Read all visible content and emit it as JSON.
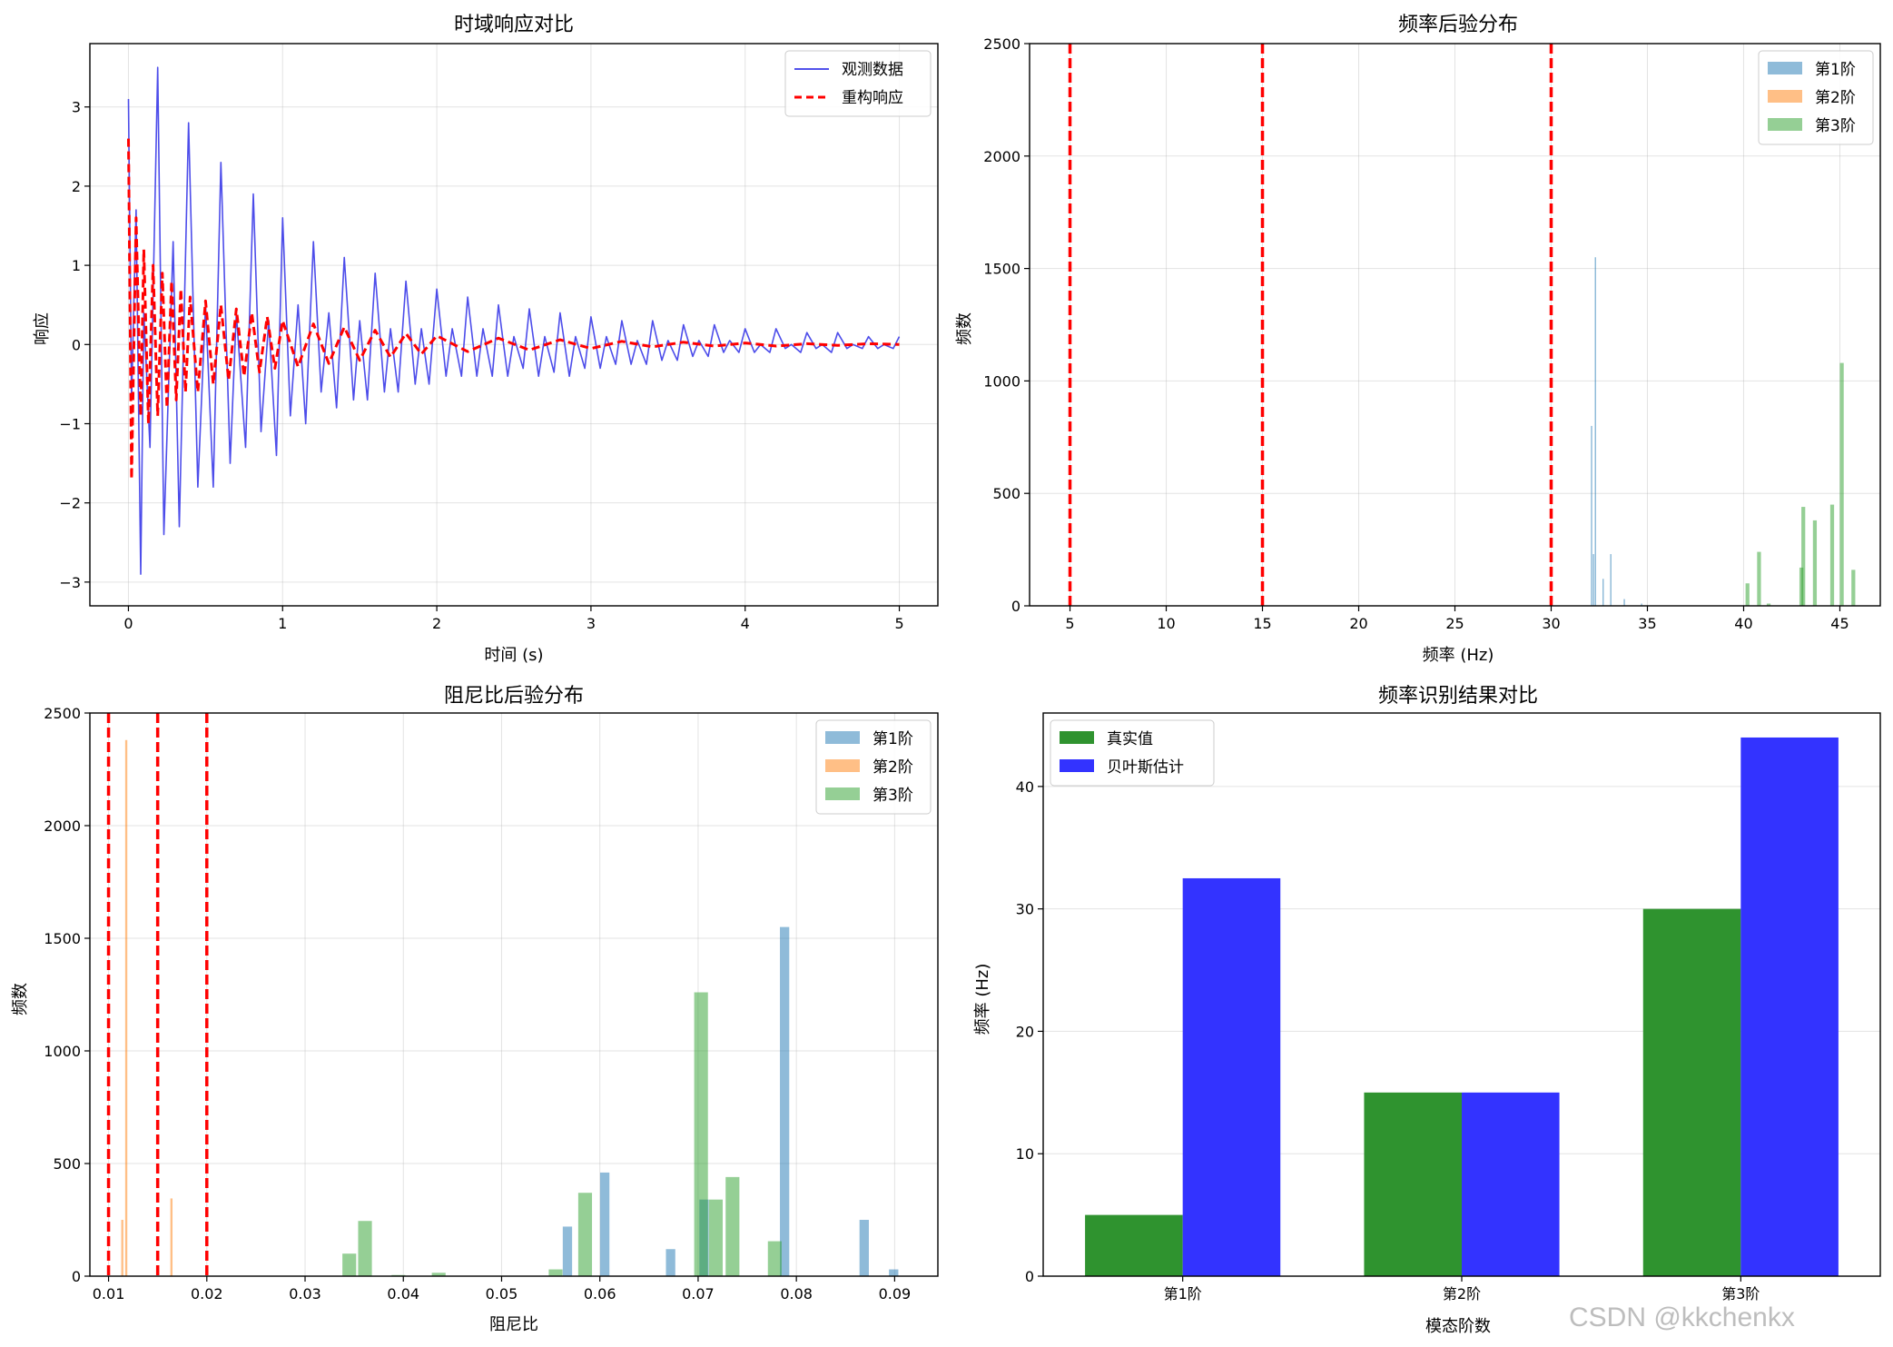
{
  "watermark": "CSDN @kkchenkx",
  "chart_data": [
    {
      "id": "time",
      "type": "line",
      "title": "时域响应对比",
      "xlabel": "时间 (s)",
      "ylabel": "响应",
      "xlim": [
        -0.25,
        5.25
      ],
      "ylim": [
        -3.3,
        3.8
      ],
      "xticks": [
        0,
        1,
        2,
        3,
        4,
        5
      ],
      "yticks": [
        -3,
        -2,
        -1,
        0,
        1,
        2,
        3
      ],
      "grid": true,
      "legend_loc": "top-right",
      "series": [
        {
          "name": "观测数据",
          "color": "#3a3ae8",
          "style": "solid",
          "x": [
            0,
            0.02,
            0.05,
            0.08,
            0.1,
            0.14,
            0.19,
            0.23,
            0.29,
            0.33,
            0.39,
            0.45,
            0.5,
            0.55,
            0.6,
            0.66,
            0.7,
            0.76,
            0.81,
            0.86,
            0.91,
            0.96,
            1.0,
            1.05,
            1.1,
            1.15,
            1.2,
            1.25,
            1.3,
            1.35,
            1.4,
            1.46,
            1.5,
            1.55,
            1.6,
            1.66,
            1.7,
            1.75,
            1.8,
            1.86,
            1.9,
            1.95,
            2.0,
            2.06,
            2.1,
            2.16,
            2.2,
            2.26,
            2.3,
            2.36,
            2.4,
            2.46,
            2.5,
            2.56,
            2.6,
            2.66,
            2.7,
            2.76,
            2.8,
            2.86,
            2.9,
            2.96,
            3.0,
            3.06,
            3.1,
            3.16,
            3.2,
            3.26,
            3.3,
            3.36,
            3.4,
            3.46,
            3.5,
            3.56,
            3.6,
            3.66,
            3.7,
            3.76,
            3.8,
            3.86,
            3.9,
            3.96,
            4.0,
            4.06,
            4.1,
            4.16,
            4.2,
            4.26,
            4.3,
            4.36,
            4.4,
            4.46,
            4.5,
            4.56,
            4.6,
            4.66,
            4.7,
            4.76,
            4.8,
            4.86,
            4.9,
            4.96,
            5.0
          ],
          "y": [
            3.1,
            -0.7,
            1.7,
            -2.9,
            0.4,
            -1.3,
            3.5,
            -2.4,
            1.3,
            -2.3,
            2.8,
            -1.8,
            0.5,
            -1.8,
            2.3,
            -1.5,
            0.4,
            -1.3,
            1.9,
            -1.1,
            0.3,
            -1.4,
            1.6,
            -0.9,
            0.5,
            -1.0,
            1.3,
            -0.6,
            0.4,
            -0.8,
            1.1,
            -0.7,
            0.3,
            -0.7,
            0.9,
            -0.6,
            0.2,
            -0.6,
            0.8,
            -0.5,
            0.2,
            -0.5,
            0.7,
            -0.4,
            0.2,
            -0.4,
            0.6,
            -0.4,
            0.2,
            -0.4,
            0.5,
            -0.4,
            0.1,
            -0.3,
            0.45,
            -0.4,
            0.1,
            -0.35,
            0.4,
            -0.4,
            0.1,
            -0.3,
            0.35,
            -0.3,
            0.1,
            -0.25,
            0.3,
            -0.25,
            0.05,
            -0.25,
            0.3,
            -0.2,
            0.05,
            -0.2,
            0.25,
            -0.15,
            0.05,
            -0.15,
            0.25,
            -0.1,
            0.05,
            -0.1,
            0.2,
            -0.1,
            0.0,
            -0.1,
            0.2,
            -0.05,
            0.0,
            -0.1,
            0.15,
            -0.05,
            0.0,
            -0.1,
            0.15,
            -0.05,
            0.0,
            -0.05,
            0.1,
            -0.05,
            0.0,
            -0.05,
            0.1
          ]
        },
        {
          "name": "重构响应",
          "color": "#ff0000",
          "style": "dashed",
          "x": [
            0,
            0.02,
            0.05,
            0.08,
            0.1,
            0.13,
            0.16,
            0.19,
            0.22,
            0.25,
            0.28,
            0.31,
            0.34,
            0.37,
            0.4,
            0.45,
            0.5,
            0.55,
            0.6,
            0.65,
            0.7,
            0.75,
            0.8,
            0.85,
            0.9,
            0.95,
            1.0,
            1.1,
            1.2,
            1.3,
            1.4,
            1.5,
            1.6,
            1.7,
            1.8,
            1.9,
            2.0,
            2.2,
            2.4,
            2.6,
            2.8,
            3.0,
            3.2,
            3.4,
            3.6,
            3.8,
            4.0,
            4.2,
            4.4,
            4.6,
            4.8,
            5.0
          ],
          "y": [
            2.6,
            -1.7,
            1.6,
            -0.9,
            1.2,
            -1.0,
            1.0,
            -0.9,
            0.9,
            -0.8,
            0.8,
            -0.7,
            0.7,
            -0.6,
            0.6,
            -0.6,
            0.55,
            -0.5,
            0.5,
            -0.45,
            0.45,
            -0.4,
            0.4,
            -0.35,
            0.35,
            -0.3,
            0.3,
            -0.28,
            0.26,
            -0.24,
            0.22,
            -0.2,
            0.18,
            -0.16,
            0.14,
            -0.12,
            0.11,
            -0.09,
            0.08,
            -0.07,
            0.06,
            -0.05,
            0.04,
            -0.03,
            0.03,
            -0.02,
            0.02,
            -0.02,
            0.01,
            -0.01,
            0.01,
            0.0
          ]
        }
      ]
    },
    {
      "id": "freq",
      "type": "histogram",
      "title": "频率后验分布",
      "xlabel": "频率 (Hz)",
      "ylabel": "频数",
      "xlim": [
        2.9,
        47.1
      ],
      "ylim": [
        0,
        2500
      ],
      "xticks": [
        5,
        10,
        15,
        20,
        25,
        30,
        35,
        40,
        45
      ],
      "yticks": [
        0,
        500,
        1000,
        1500,
        2000,
        2500
      ],
      "grid": true,
      "legend_loc": "top-right",
      "true_values": [
        5,
        15,
        30
      ],
      "series": [
        {
          "name": "第1阶",
          "color": "#1f77b4",
          "bar_width": 0.07,
          "x": [
            32.1,
            32.2,
            32.3,
            32.7,
            33.1,
            33.8,
            34.7
          ],
          "values": [
            800,
            230,
            1550,
            120,
            230,
            30,
            10
          ]
        },
        {
          "name": "第2阶",
          "color": "#ff7f0e",
          "bar_width": 0.07,
          "x": [],
          "values": []
        },
        {
          "name": "第3阶",
          "color": "#2ca02c",
          "bar_width": 0.2,
          "x": [
            40.2,
            40.8,
            41.3,
            43.0,
            43.1,
            43.7,
            44.6,
            45.1,
            45.7
          ],
          "values": [
            100,
            240,
            10,
            170,
            440,
            380,
            450,
            1080,
            160
          ]
        }
      ]
    },
    {
      "id": "damp",
      "type": "histogram",
      "title": "阻尼比后验分布",
      "xlabel": "阻尼比",
      "ylabel": "频数",
      "xlim": [
        0.0081,
        0.0944
      ],
      "ylim": [
        0,
        2500
      ],
      "xticks": [
        0.01,
        0.02,
        0.03,
        0.04,
        0.05,
        0.06,
        0.07,
        0.08,
        0.09
      ],
      "xtick_labels": [
        "0.01",
        "0.02",
        "0.03",
        "0.04",
        "0.05",
        "0.06",
        "0.07",
        "0.08",
        "0.09"
      ],
      "yticks": [
        0,
        500,
        1000,
        1500,
        2000,
        2500
      ],
      "grid": true,
      "legend_loc": "top-right",
      "true_values": [
        0.01,
        0.015,
        0.02
      ],
      "series": [
        {
          "name": "第1阶",
          "color": "#1f77b4",
          "bar_width": 0.00095,
          "x": [
            0.0567,
            0.0605,
            0.0672,
            0.0706,
            0.0788,
            0.0869,
            0.0899
          ],
          "values": [
            220,
            460,
            120,
            340,
            1550,
            250,
            30
          ]
        },
        {
          "name": "第2阶",
          "color": "#ff7f0e",
          "bar_width": 0.00022,
          "x": [
            0.0114,
            0.0118,
            0.0164
          ],
          "values": [
            250,
            2380,
            345
          ]
        },
        {
          "name": "第3阶",
          "color": "#2ca02c",
          "bar_width": 0.0014,
          "x": [
            0.0345,
            0.0361,
            0.0395,
            0.0436,
            0.0555,
            0.0585,
            0.0703,
            0.0718,
            0.0735,
            0.0778
          ],
          "values": [
            100,
            245,
            5,
            15,
            30,
            370,
            1260,
            340,
            440,
            155
          ]
        }
      ]
    },
    {
      "id": "compare",
      "type": "bar",
      "title": "频率识别结果对比",
      "xlabel": "模态阶数",
      "ylabel": "频率 (Hz)",
      "ylim": [
        0,
        46
      ],
      "yticks": [
        0,
        10,
        20,
        30,
        40
      ],
      "categories": [
        "第1阶",
        "第2阶",
        "第3阶"
      ],
      "grid": true,
      "legend_loc": "top-left",
      "series": [
        {
          "name": "真实值",
          "color": "#2f932f",
          "values": [
            5,
            15,
            30
          ]
        },
        {
          "name": "贝叶斯估计",
          "color": "#3333ff",
          "values": [
            32.5,
            15,
            44
          ]
        }
      ]
    }
  ]
}
